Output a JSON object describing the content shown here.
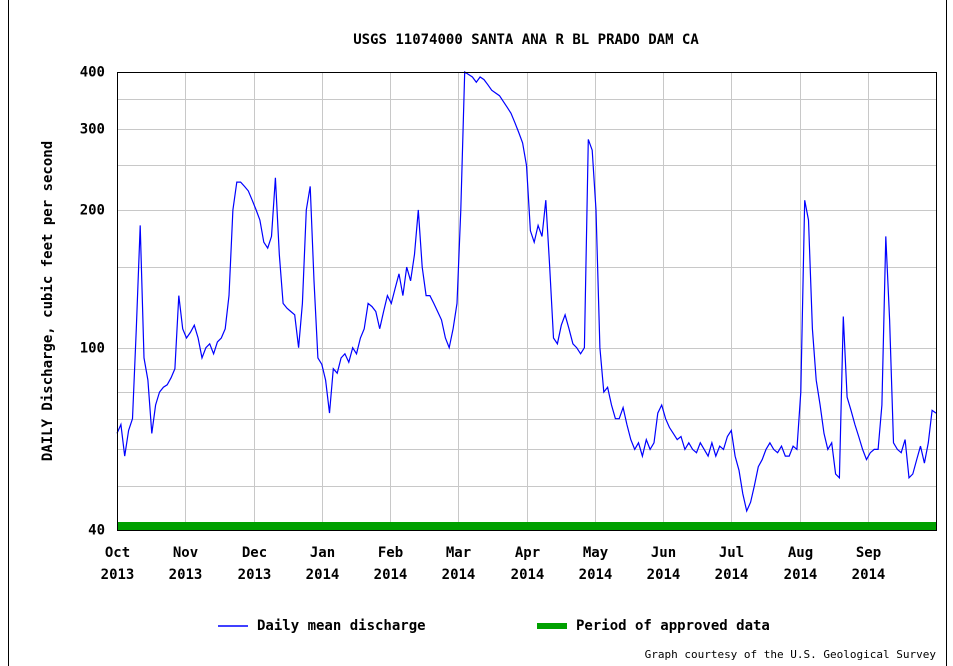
{
  "chart_data": {
    "type": "line",
    "title": "USGS 11074000 SANTA ANA R BL PRADO DAM CA",
    "y_label": "DAILY Discharge, cubic feet per second",
    "log_y": true,
    "grid": true,
    "ylim": [
      40,
      400
    ],
    "yticks": [
      40,
      100,
      200,
      300,
      400
    ],
    "minor_yticks": [
      50,
      60,
      70,
      80,
      90,
      150,
      250,
      350
    ],
    "x_tick_labels": [
      [
        "Oct",
        "2013"
      ],
      [
        "Nov",
        "2013"
      ],
      [
        "Dec",
        "2013"
      ],
      [
        "Jan",
        "2014"
      ],
      [
        "Feb",
        "2014"
      ],
      [
        "Mar",
        "2014"
      ],
      [
        "Apr",
        "2014"
      ],
      [
        "May",
        "2014"
      ],
      [
        "Jun",
        "2014"
      ],
      [
        "Jul",
        "2014"
      ],
      [
        "Aug",
        "2014"
      ],
      [
        "Sep",
        "2014"
      ]
    ],
    "series": [
      {
        "name": "Daily mean discharge",
        "color": "#0000ff",
        "values": [
          65,
          68,
          58,
          66,
          70,
          110,
          185,
          95,
          85,
          65,
          75,
          80,
          82,
          83,
          86,
          90,
          130,
          110,
          105,
          108,
          112,
          105,
          95,
          100,
          102,
          97,
          103,
          105,
          110,
          130,
          200,
          230,
          230,
          225,
          220,
          210,
          200,
          190,
          170,
          165,
          175,
          235,
          160,
          125,
          122,
          120,
          118,
          100,
          125,
          200,
          225,
          140,
          95,
          92,
          85,
          72,
          90,
          88,
          95,
          97,
          93,
          100,
          97,
          105,
          110,
          125,
          123,
          120,
          110,
          120,
          130,
          125,
          135,
          145,
          130,
          150,
          140,
          160,
          200,
          150,
          130,
          130,
          125,
          120,
          115,
          105,
          100,
          110,
          125,
          200,
          400,
          395,
          390,
          380,
          390,
          385,
          375,
          365,
          360,
          355,
          345,
          335,
          325,
          310,
          295,
          280,
          250,
          180,
          170,
          185,
          175,
          210,
          150,
          105,
          102,
          112,
          118,
          110,
          102,
          100,
          97,
          100,
          285,
          270,
          200,
          100,
          80,
          82,
          75,
          70,
          70,
          74,
          68,
          63,
          60,
          62,
          58,
          63,
          60,
          62,
          72,
          75,
          70,
          67,
          65,
          63,
          64,
          60,
          62,
          60,
          59,
          62,
          60,
          58,
          62,
          58,
          61,
          60,
          64,
          66,
          58,
          54,
          48,
          44,
          46,
          50,
          55,
          57,
          60,
          62,
          60,
          59,
          61,
          58,
          58,
          61,
          60,
          80,
          210,
          190,
          110,
          85,
          75,
          65,
          60,
          62,
          53,
          52,
          117,
          78,
          73,
          68,
          64,
          60,
          57,
          59,
          60,
          60,
          75,
          175,
          115,
          62,
          60,
          59,
          63,
          52,
          53,
          57,
          61,
          56,
          62,
          73,
          72
        ]
      }
    ],
    "approved_period": {
      "name": "Period of approved data",
      "color": "#00a000"
    },
    "footer": "Graph courtesy of the U.S. Geological Survey"
  }
}
